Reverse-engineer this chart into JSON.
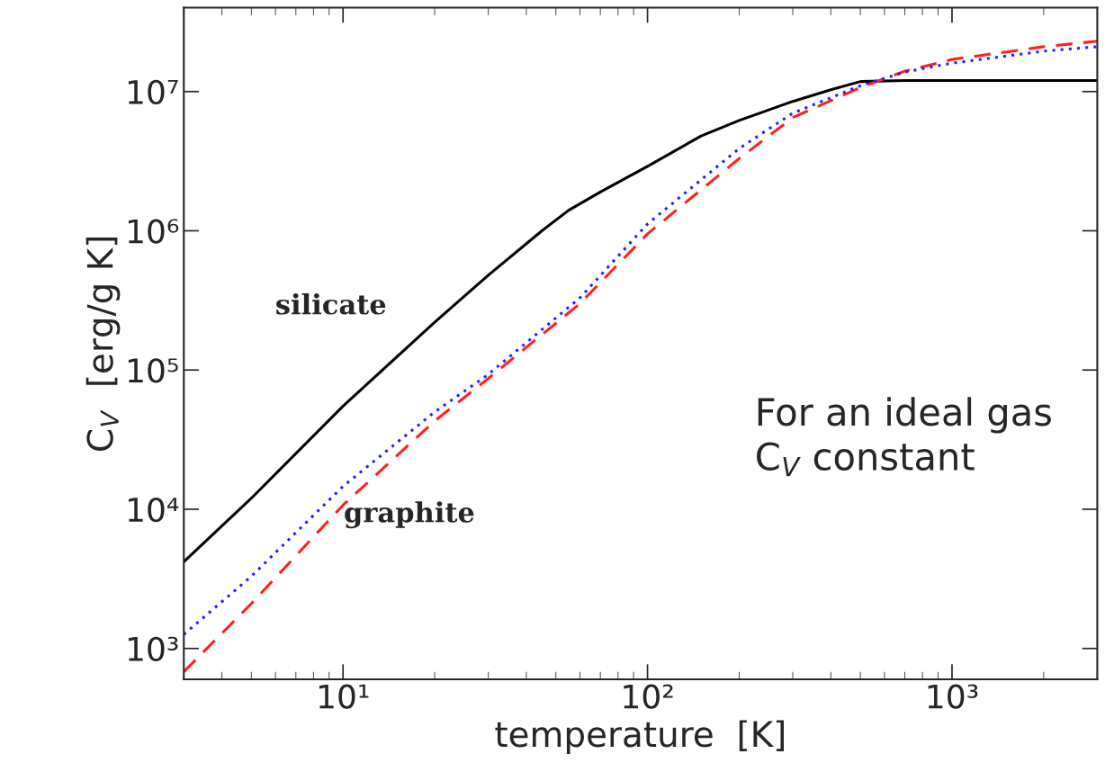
{
  "chart_data": {
    "type": "line",
    "xlabel": "temperature  [K]",
    "ylabel": "C$_{V}$  [erg/g K]",
    "log": "xy",
    "xlim": [
      3,
      3000
    ],
    "ylim": [
      600,
      40000000
    ],
    "xticks": [
      {
        "value": 10,
        "label": "10¹"
      },
      {
        "value": 100,
        "label": "10²"
      },
      {
        "value": 1000,
        "label": "10³"
      }
    ],
    "yticks": [
      {
        "value": 1000,
        "label": "10³"
      },
      {
        "value": 10000,
        "label": "10⁴"
      },
      {
        "value": 100000,
        "label": "10⁵"
      },
      {
        "value": 1000000,
        "label": "10⁶"
      },
      {
        "value": 10000000,
        "label": "10⁷"
      }
    ],
    "grid": false,
    "legend": false,
    "series": [
      {
        "color": "#000000",
        "line_style": "solid",
        "x": [
          3,
          5,
          10,
          20,
          30,
          45,
          55,
          70,
          100,
          150,
          200,
          300,
          400,
          500,
          700,
          1000,
          3000
        ],
        "values": [
          4200,
          12000,
          55000,
          220000,
          480000,
          1000000,
          1400000,
          1900000,
          2900000,
          4800000,
          6200000,
          8500000,
          10300000,
          11800000,
          12000000,
          12000000,
          12000000
        ]
      },
      {
        "color": "#ff2020",
        "line_style": "dashed",
        "x": [
          3,
          5,
          10,
          20,
          30,
          60,
          100,
          200,
          300,
          500,
          700,
          1000,
          2000,
          3000
        ],
        "values": [
          680,
          2100,
          10700,
          43000,
          87000,
          300000,
          950000,
          3300000,
          6500000,
          10700000,
          14000000,
          17000000,
          21000000,
          23000000
        ]
      },
      {
        "color": "#2020ff",
        "line_style": "dotted",
        "x": [
          3,
          5,
          10,
          20,
          30,
          60,
          100,
          200,
          300,
          500,
          700,
          1000,
          2000,
          3000
        ],
        "values": [
          1260,
          3300,
          14600,
          50000,
          93000,
          330000,
          1120000,
          3900000,
          7000000,
          11000000,
          13800000,
          16000000,
          19500000,
          21000000
        ]
      }
    ],
    "annotations": [
      "silicate",
      "graphite",
      "For an ideal gas\nC$_{V}$ constant"
    ]
  }
}
